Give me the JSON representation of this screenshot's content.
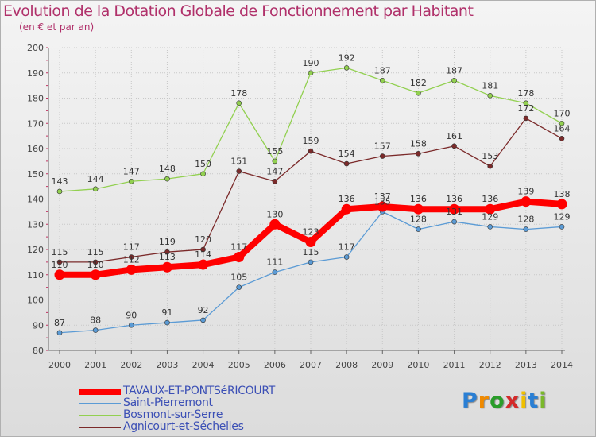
{
  "title": "Evolution de la Dotation Globale de Fonctionnement par Habitant",
  "subtitle": "(en € et par an)",
  "chart_data": {
    "type": "line",
    "title": "Evolution de la Dotation Globale de Fonctionnement par Habitant",
    "subtitle": "(en € et par an)",
    "xlabel": "",
    "ylabel": "",
    "ylim": [
      80,
      200
    ],
    "yticks": [
      "80",
      "90",
      "100",
      "110",
      "120",
      "130",
      "140",
      "150",
      "160",
      "170",
      "180",
      "190",
      "200"
    ],
    "x": [
      "2000",
      "2001",
      "2002",
      "2003",
      "2004",
      "2005",
      "2006",
      "2007",
      "2008",
      "2009",
      "2010",
      "2011",
      "2012",
      "2013",
      "2014"
    ],
    "grid": true,
    "legend_position": "bottom-left",
    "series": [
      {
        "name": "TAVAUX-ET-PONTSéRICOURT",
        "color": "#ff0000",
        "values": [
          110,
          110,
          112,
          113,
          114,
          117,
          130,
          123,
          136,
          137,
          136,
          136,
          136,
          139,
          138
        ],
        "labels": [
          "110",
          "110",
          "112",
          "113",
          "114",
          "117",
          "130",
          "123",
          "136",
          "137",
          "136",
          "136",
          "136",
          "139",
          "138"
        ]
      },
      {
        "name": "Saint-Pierremont",
        "color": "#5b9bd5",
        "values": [
          87,
          88,
          90,
          91,
          92,
          105,
          111,
          115,
          117,
          135,
          128,
          131,
          129,
          128,
          129
        ],
        "labels": [
          "87",
          "88",
          "90",
          "91",
          "92",
          "105",
          "111",
          "115",
          "117",
          "135",
          "128",
          "131",
          "129",
          "128",
          "129"
        ]
      },
      {
        "name": "Bosmont-sur-Serre",
        "color": "#92d050",
        "values": [
          143,
          144,
          147,
          148,
          150,
          178,
          155,
          190,
          192,
          187,
          182,
          187,
          181,
          178,
          170
        ],
        "labels": [
          "143",
          "144",
          "147",
          "148",
          "150",
          "178",
          "155",
          "190",
          "192",
          "187",
          "182",
          "187",
          "181",
          "178",
          "170"
        ]
      },
      {
        "name": "Agnicourt-et-Séchelles",
        "color": "#7b2a2a",
        "values": [
          115,
          115,
          117,
          119,
          120,
          151,
          147,
          159,
          154,
          157,
          158,
          161,
          153,
          172,
          164
        ],
        "labels": [
          "115",
          "115",
          "117",
          "119",
          "120",
          "151",
          "147",
          "159",
          "154",
          "157",
          "158",
          "161",
          "153",
          "172",
          "164"
        ]
      }
    ]
  },
  "logo": {
    "letters": [
      "P",
      "r",
      "o",
      "x",
      "i",
      "t",
      "i"
    ],
    "colors": [
      "#2a7fd4",
      "#f08a00",
      "#2a9d2a",
      "#d42a2a",
      "#f0c000",
      "#2a7fd4",
      "#7ab82a"
    ]
  }
}
